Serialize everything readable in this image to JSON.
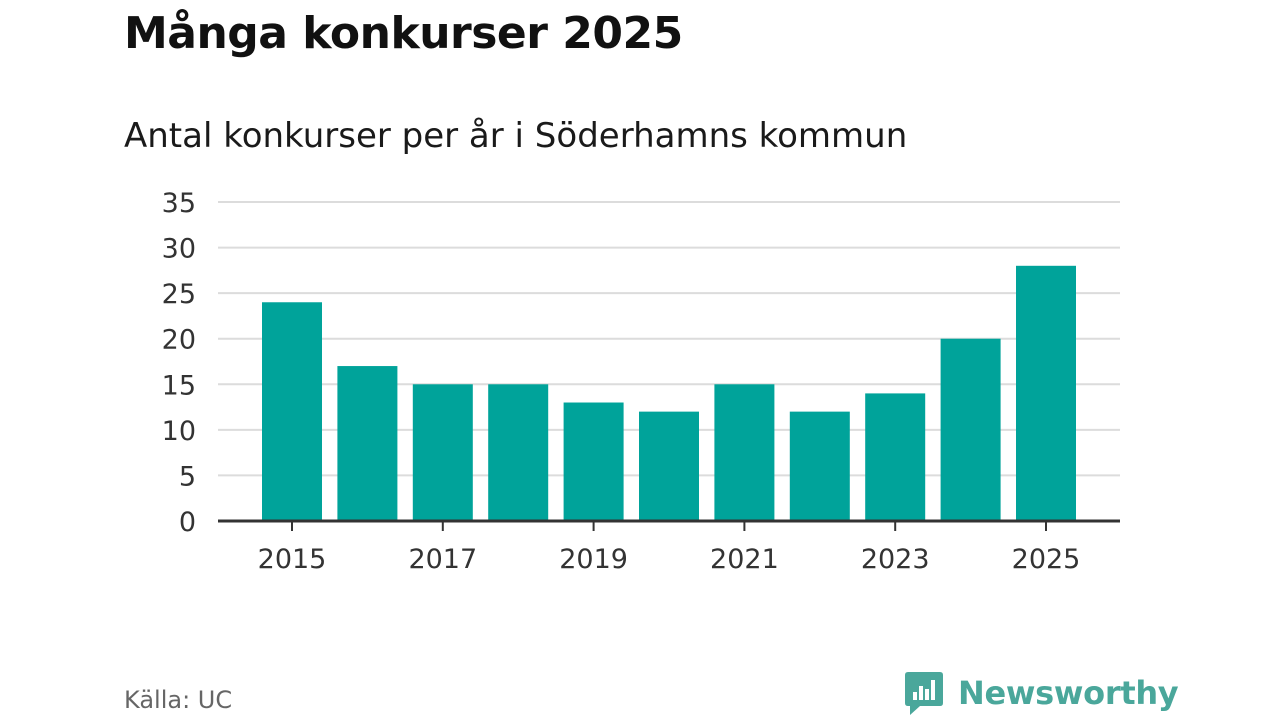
{
  "header": {
    "title": "Många konkurser 2025",
    "subtitle": "Antal konkurser per år i Söderhamns kommun"
  },
  "footer": {
    "source": "Källa: UC",
    "brand": "Newsworthy",
    "brand_icon": "newsworthy-logo-icon",
    "brand_color": "#4aa79b"
  },
  "colors": {
    "bar": "#00a39a",
    "grid": "#dcdcdc",
    "axis": "#333333",
    "tick_text": "#333333"
  },
  "chart_data": {
    "type": "bar",
    "title": "Många konkurser 2025",
    "subtitle": "Antal konkurser per år i Söderhamns kommun",
    "xlabel": "",
    "ylabel": "",
    "categories": [
      "2015",
      "2016",
      "2017",
      "2018",
      "2019",
      "2020",
      "2021",
      "2022",
      "2023",
      "2024",
      "2025"
    ],
    "values": [
      24,
      17,
      15,
      15,
      13,
      12,
      15,
      12,
      14,
      20,
      28
    ],
    "ylim": [
      0,
      35
    ],
    "yticks": [
      0,
      5,
      10,
      15,
      20,
      25,
      30,
      35
    ],
    "xtick_labels": [
      "2015",
      "2017",
      "2019",
      "2021",
      "2023",
      "2025"
    ],
    "grid": true,
    "legend": "none"
  }
}
